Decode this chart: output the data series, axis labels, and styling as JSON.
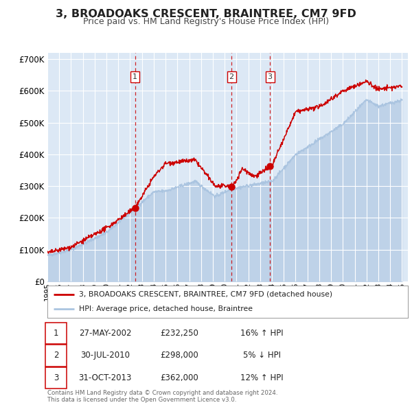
{
  "title": "3, BROADOAKS CRESCENT, BRAINTREE, CM7 9FD",
  "subtitle": "Price paid vs. HM Land Registry's House Price Index (HPI)",
  "hpi_color": "#aac4e0",
  "price_color": "#cc0000",
  "plot_bg": "#dce8f5",
  "grid_color": "#ffffff",
  "yticks": [
    0,
    100000,
    200000,
    300000,
    400000,
    500000,
    600000,
    700000
  ],
  "xmin": 1995.0,
  "xmax": 2025.5,
  "ymin": 0,
  "ymax": 720000,
  "sale_dates": [
    2002.41,
    2010.58,
    2013.83
  ],
  "sale_prices": [
    232250,
    298000,
    362000
  ],
  "sale_labels": [
    "1",
    "2",
    "3"
  ],
  "legend_price_label": "3, BROADOAKS CRESCENT, BRAINTREE, CM7 9FD (detached house)",
  "legend_hpi_label": "HPI: Average price, detached house, Braintree",
  "table_rows": [
    {
      "num": "1",
      "date": "27-MAY-2002",
      "price": "£232,250",
      "hpi": "16% ↑ HPI"
    },
    {
      "num": "2",
      "date": "30-JUL-2010",
      "price": "£298,000",
      "hpi": "5% ↓ HPI"
    },
    {
      "num": "3",
      "date": "31-OCT-2013",
      "price": "£362,000",
      "hpi": "12% ↑ HPI"
    }
  ],
  "footer": "Contains HM Land Registry data © Crown copyright and database right 2024.\nThis data is licensed under the Open Government Licence v3.0.",
  "xticks": [
    1995,
    1996,
    1997,
    1998,
    1999,
    2000,
    2001,
    2002,
    2003,
    2004,
    2005,
    2006,
    2007,
    2008,
    2009,
    2010,
    2011,
    2012,
    2013,
    2014,
    2015,
    2016,
    2017,
    2018,
    2019,
    2020,
    2021,
    2022,
    2023,
    2024,
    2025
  ]
}
